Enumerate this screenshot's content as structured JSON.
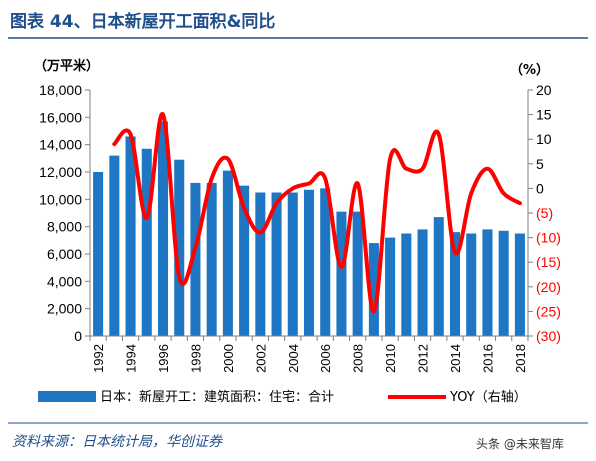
{
  "header": {
    "title": "图表 44、日本新屋开工面积&同比"
  },
  "units": {
    "left": "（万平米）",
    "right": "（%）"
  },
  "legend": {
    "bar_label": "日本：新屋开工：建筑面积：住宅：合计",
    "line_label": "YOY（右轴）"
  },
  "footer": {
    "source": "资料来源：日本统计局，华创证券",
    "watermark": "头条 @未来智库"
  },
  "colors": {
    "bar": "#1f77c4",
    "line": "#ff0000",
    "title": "#1f4e8c",
    "negative_tick": "#ff0000"
  },
  "chart_data": {
    "type": "bar",
    "title": "图表 44、日本新屋开工面积&同比",
    "x": [
      1992,
      1993,
      1994,
      1995,
      1996,
      1997,
      1998,
      1999,
      2000,
      2001,
      2002,
      2003,
      2004,
      2005,
      2006,
      2007,
      2008,
      2009,
      2010,
      2011,
      2012,
      2013,
      2014,
      2015,
      2016,
      2017,
      2018
    ],
    "x_tick_labels": [
      "1992",
      "1994",
      "1996",
      "1998",
      "2000",
      "2002",
      "2004",
      "2006",
      "2008",
      "2010",
      "2012",
      "2014",
      "2016",
      "2018"
    ],
    "series": [
      {
        "name": "日本：新屋开工：建筑面积：住宅：合计",
        "axis": "left",
        "type": "bar",
        "values": [
          12000,
          13200,
          14600,
          13700,
          15700,
          12900,
          11200,
          11200,
          12100,
          11000,
          10500,
          10500,
          10500,
          10700,
          10800,
          9100,
          9100,
          6800,
          7200,
          7500,
          7800,
          8700,
          7600,
          7500,
          7800,
          7700,
          7500
        ]
      },
      {
        "name": "YOY（右轴）",
        "axis": "right",
        "type": "line",
        "values": [
          null,
          9,
          11,
          -6,
          15,
          -18,
          -12,
          2,
          6,
          -4,
          -9,
          -3,
          0,
          1,
          2,
          -16,
          1,
          -25,
          6,
          4,
          4,
          11,
          -13,
          -1,
          4,
          -1,
          -3
        ]
      }
    ],
    "y_left": {
      "min": 0,
      "max": 18000,
      "step": 2000,
      "tick_labels": [
        "0",
        "2,000",
        "4,000",
        "6,000",
        "8,000",
        "10,000",
        "12,000",
        "14,000",
        "16,000",
        "18,000"
      ]
    },
    "y_right": {
      "min": -30,
      "max": 20,
      "step": 5,
      "tick_labels": [
        "(30)",
        "(25)",
        "(20)",
        "(15)",
        "(10)",
        "(5)",
        "0",
        "5",
        "10",
        "15",
        "20"
      ]
    },
    "grid": false,
    "legend_position": "bottom"
  }
}
